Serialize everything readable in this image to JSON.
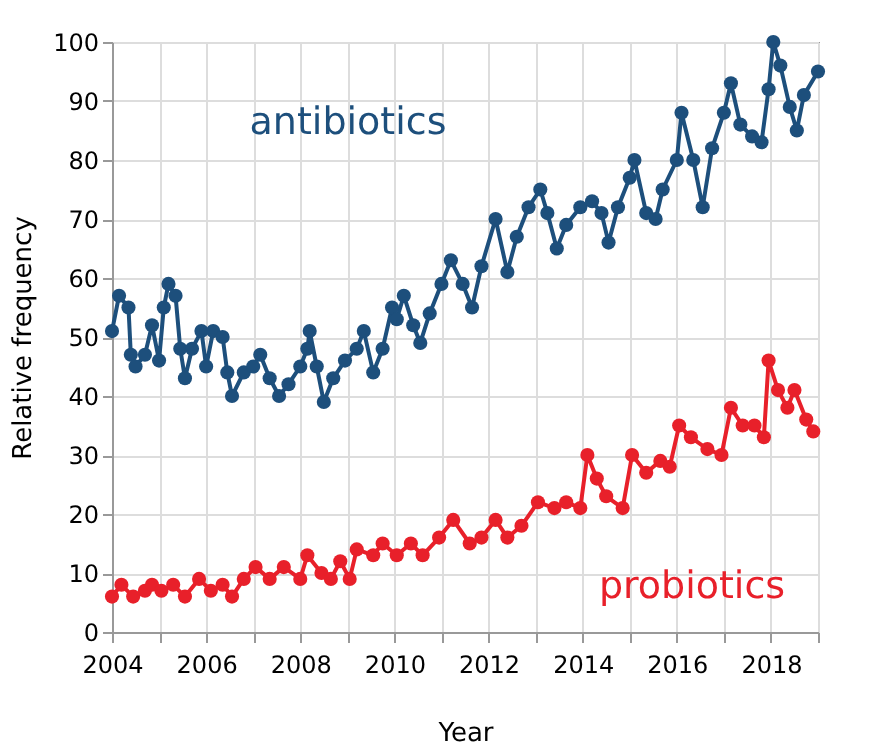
{
  "chart_data": {
    "type": "line",
    "xlabel": "Year",
    "ylabel": "Relative frequency",
    "xlim": [
      2004,
      2019
    ],
    "ylim": [
      0,
      100
    ],
    "xticks": [
      2004,
      {
        "value": 2005,
        "label": null
      },
      2006,
      {
        "value": 2007,
        "label": null
      },
      2008,
      {
        "value": 2009,
        "label": null
      },
      2010,
      {
        "value": 2011,
        "label": null
      },
      2012,
      {
        "value": 2013,
        "label": null
      },
      2014,
      {
        "value": 2015,
        "label": null
      },
      2016,
      {
        "value": 2017,
        "label": null
      },
      2018,
      {
        "value": 2019,
        "label": null
      }
    ],
    "yticks": [
      0,
      10,
      20,
      30,
      40,
      50,
      60,
      70,
      80,
      90,
      100
    ],
    "grid": true,
    "legend": false,
    "marker": "circle",
    "line_style": "solid",
    "series": [
      {
        "name": "antibiotics",
        "color": "#1d4f7c",
        "x": [
          2004.0,
          2004.15,
          2004.35,
          2004.4,
          2004.5,
          2004.7,
          2004.85,
          2005.0,
          2005.1,
          2005.2,
          2005.35,
          2005.45,
          2005.55,
          2005.7,
          2005.9,
          2006.0,
          2006.15,
          2006.35,
          2006.45,
          2006.55,
          2006.8,
          2007.0,
          2007.15,
          2007.35,
          2007.55,
          2007.75,
          2008.0,
          2008.15,
          2008.2,
          2008.35,
          2008.5,
          2008.7,
          2008.95,
          2009.2,
          2009.35,
          2009.55,
          2009.75,
          2009.95,
          2010.05,
          2010.2,
          2010.4,
          2010.55,
          2010.75,
          2011.0,
          2011.2,
          2011.45,
          2011.65,
          2011.85,
          2012.15,
          2012.4,
          2012.6,
          2012.85,
          2013.1,
          2013.25,
          2013.45,
          2013.65,
          2013.95,
          2014.2,
          2014.4,
          2014.55,
          2014.75,
          2015.0,
          2015.1,
          2015.35,
          2015.55,
          2015.7,
          2016.0,
          2016.1,
          2016.35,
          2016.55,
          2016.75,
          2017.0,
          2017.15,
          2017.35,
          2017.6,
          2017.8,
          2017.95,
          2018.05,
          2018.2,
          2018.4,
          2018.55,
          2018.7,
          2019.0
        ],
        "values": [
          51,
          57,
          55,
          47,
          45,
          47,
          52,
          46,
          55,
          59,
          57,
          48,
          43,
          48,
          51,
          45,
          51,
          50,
          44,
          40,
          44,
          45,
          47,
          43,
          40,
          42,
          45,
          48,
          51,
          45,
          39,
          43,
          46,
          48,
          51,
          44,
          48,
          55,
          53,
          57,
          52,
          49,
          54,
          59,
          63,
          59,
          55,
          62,
          70,
          61,
          67,
          72,
          75,
          71,
          65,
          69,
          72,
          73,
          71,
          66,
          72,
          77,
          80,
          71,
          70,
          75,
          80,
          88,
          80,
          72,
          82,
          88,
          93,
          86,
          84,
          83,
          92,
          100,
          96,
          89,
          85,
          91,
          95
        ]
      },
      {
        "name": "probiotics",
        "color": "#e8202a",
        "x": [
          2004.0,
          2004.2,
          2004.45,
          2004.7,
          2004.85,
          2005.05,
          2005.3,
          2005.55,
          2005.85,
          2006.1,
          2006.35,
          2006.55,
          2006.8,
          2007.05,
          2007.35,
          2007.65,
          2008.0,
          2008.15,
          2008.45,
          2008.65,
          2008.85,
          2009.05,
          2009.2,
          2009.55,
          2009.75,
          2010.05,
          2010.35,
          2010.6,
          2010.95,
          2011.25,
          2011.6,
          2011.85,
          2012.15,
          2012.4,
          2012.7,
          2013.05,
          2013.4,
          2013.65,
          2013.95,
          2014.1,
          2014.3,
          2014.5,
          2014.85,
          2015.05,
          2015.35,
          2015.65,
          2015.85,
          2016.05,
          2016.3,
          2016.65,
          2016.95,
          2017.15,
          2017.4,
          2017.65,
          2017.85,
          2017.95,
          2018.15,
          2018.35,
          2018.5,
          2018.75,
          2018.9
        ],
        "values": [
          6,
          8,
          6,
          7,
          8,
          7,
          8,
          6,
          9,
          7,
          8,
          6,
          9,
          11,
          9,
          11,
          9,
          13,
          10,
          9,
          12,
          9,
          14,
          13,
          15,
          13,
          15,
          13,
          16,
          19,
          15,
          16,
          19,
          16,
          18,
          22,
          21,
          22,
          21,
          30,
          26,
          23,
          21,
          30,
          27,
          29,
          28,
          35,
          33,
          31,
          30,
          38,
          35,
          35,
          33,
          46,
          41,
          38,
          41,
          36,
          34
        ]
      }
    ]
  }
}
